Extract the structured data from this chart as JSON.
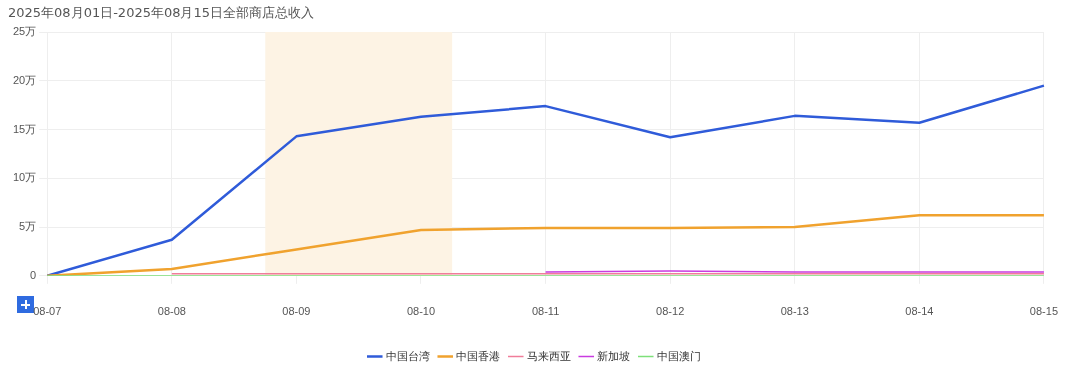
{
  "chart_data": {
    "type": "line",
    "title": "2025年08月01日-2025年08月15日全部商店总收入",
    "categories": [
      "08-07",
      "08-08",
      "08-09",
      "08-10",
      "08-11",
      "08-12",
      "08-13",
      "08-14",
      "08-15"
    ],
    "series": [
      {
        "name": "中国台湾",
        "color": "#2f5bd9",
        "values": [
          0,
          3.7,
          14.3,
          16.3,
          17.4,
          14.2,
          16.4,
          15.7,
          19.5
        ]
      },
      {
        "name": "中国香港",
        "color": "#f0a22e",
        "values": [
          0,
          0.7,
          2.7,
          4.7,
          4.9,
          4.9,
          5.0,
          6.2,
          6.2
        ]
      },
      {
        "name": "马来西亚",
        "color": "#f07d9a",
        "values": [
          null,
          0.2,
          0.2,
          0.2,
          0.2,
          0.2,
          0.2,
          0.2,
          0.2
        ]
      },
      {
        "name": "新加坡",
        "color": "#c93be0",
        "values": [
          null,
          null,
          null,
          null,
          0.4,
          0.5,
          0.4,
          0.4,
          0.4
        ]
      },
      {
        "name": "中国澳门",
        "color": "#7ee07a",
        "values": [
          0,
          0,
          0,
          0,
          0,
          0,
          0,
          0,
          0
        ]
      }
    ],
    "ylim": [
      0,
      25
    ],
    "yticks": [
      0,
      {
        "value": 5,
        "label": "5万"
      },
      {
        "value": 10,
        "label": "10万"
      },
      {
        "value": 15,
        "label": "15万"
      },
      {
        "value": 20,
        "label": "20万"
      },
      {
        "value": 25,
        "label": "25万"
      }
    ],
    "bands": [
      {
        "axis": "x",
        "from": "08-09",
        "to": "08-10",
        "color": "#fdf3e4"
      }
    ],
    "grid": true,
    "legend": "bottom",
    "marker": "none",
    "line_style": "solid"
  }
}
